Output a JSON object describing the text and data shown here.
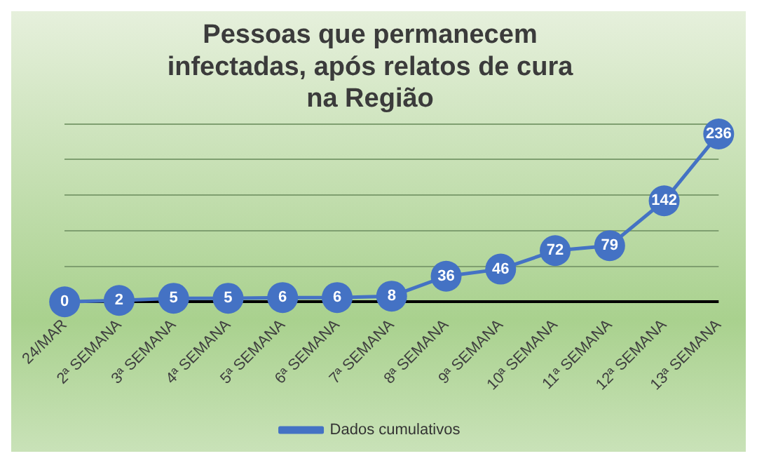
{
  "chart_data": {
    "type": "line",
    "title": "Pessoas que permanecem infectadas, após relatos de cura na Região",
    "categories": [
      "24/MAR",
      "2ª SEMANA",
      "3ª SEMANA",
      "4ª SEMANA",
      "5ª SEMANA",
      "6ª SEMANA",
      "7ª SEMANA",
      "8ª SEMANA",
      "9ª SEMANA",
      "10ª SEMANA",
      "11ª SEMANA",
      "12ª SEMANA",
      "13ª SEMANA"
    ],
    "series": [
      {
        "name": "Dados cumulativos",
        "color": "#4472c4",
        "values": [
          0,
          2,
          5,
          5,
          6,
          6,
          8,
          36,
          46,
          72,
          79,
          142,
          236
        ]
      }
    ],
    "ylim": [
      0,
      250
    ],
    "yticks": [
      {
        "value": 0,
        "label": null
      },
      {
        "value": 50,
        "label": null
      },
      {
        "value": 100,
        "label": null
      },
      {
        "value": 150,
        "label": null
      },
      {
        "value": 200,
        "label": null
      },
      {
        "value": 250,
        "label": null
      }
    ],
    "grid": "y",
    "legend": "bottom",
    "marker": "circle",
    "line_style": "solid",
    "data_labels": true
  }
}
